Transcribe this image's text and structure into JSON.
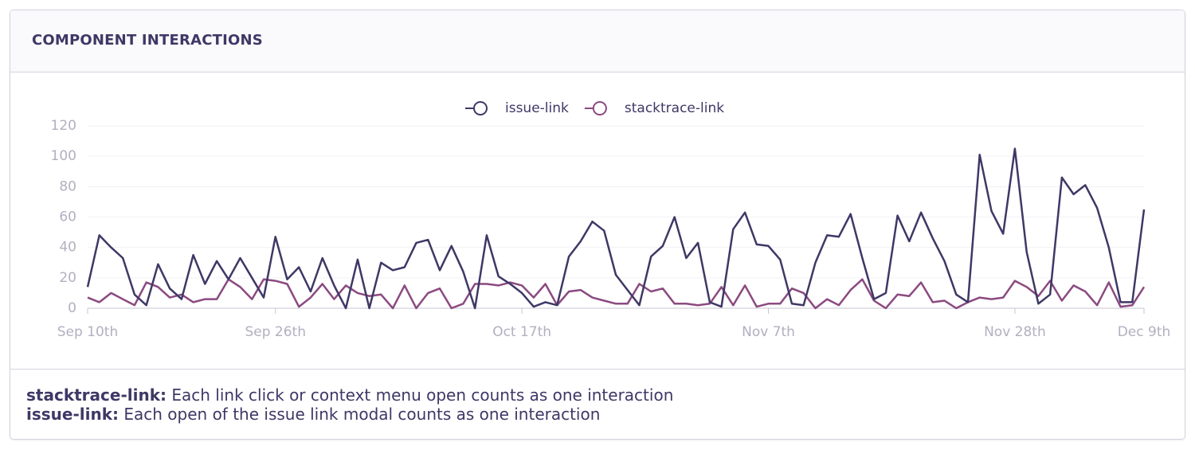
{
  "panel": {
    "title": "COMPONENT INTERACTIONS"
  },
  "chart_data": {
    "type": "line",
    "categories": [
      "Sep 10th",
      null,
      null,
      null,
      null,
      null,
      null,
      null,
      null,
      null,
      null,
      null,
      null,
      null,
      null,
      null,
      "Sep 26th",
      null,
      null,
      null,
      null,
      null,
      null,
      null,
      null,
      null,
      null,
      null,
      null,
      null,
      null,
      null,
      null,
      null,
      null,
      null,
      null,
      "Oct 17th",
      null,
      null,
      null,
      null,
      null,
      null,
      null,
      null,
      null,
      null,
      null,
      null,
      null,
      null,
      null,
      null,
      null,
      null,
      null,
      null,
      "Nov 7th",
      null,
      null,
      null,
      null,
      null,
      null,
      null,
      null,
      null,
      null,
      null,
      null,
      null,
      null,
      null,
      null,
      null,
      null,
      null,
      null,
      "Nov 28th",
      null,
      null,
      null,
      null,
      null,
      null,
      null,
      null,
      null,
      null,
      "Dec 9th"
    ],
    "series": [
      {
        "name": "issue-link",
        "color": "#3e3866",
        "values": [
          14,
          48,
          40,
          33,
          9,
          2,
          29,
          13,
          6,
          35,
          16,
          31,
          19,
          33,
          20,
          7,
          47,
          19,
          27,
          11,
          33,
          15,
          0,
          32,
          0,
          30,
          25,
          27,
          43,
          45,
          25,
          41,
          24,
          0,
          48,
          21,
          16,
          10,
          1,
          4,
          2,
          34,
          44,
          57,
          51,
          22,
          12,
          2,
          34,
          41,
          60,
          33,
          43,
          4,
          1,
          52,
          63,
          42,
          41,
          32,
          3,
          2,
          30,
          48,
          47,
          62,
          33,
          6,
          10,
          61,
          44,
          63,
          46,
          31,
          9,
          4,
          101,
          64,
          49,
          105,
          37,
          3,
          9,
          86,
          75,
          81,
          66,
          40,
          4,
          4,
          65
        ]
      },
      {
        "name": "stacktrace-link",
        "color": "#8b4a80",
        "values": [
          7,
          4,
          10,
          6,
          2,
          17,
          14,
          7,
          9,
          4,
          6,
          6,
          19,
          14,
          6,
          19,
          18,
          16,
          1,
          7,
          16,
          6,
          15,
          10,
          8,
          9,
          0,
          15,
          0,
          10,
          13,
          0,
          3,
          16,
          16,
          15,
          17,
          15,
          7,
          16,
          2,
          11,
          12,
          7,
          5,
          3,
          3,
          16,
          11,
          13,
          3,
          3,
          2,
          3,
          14,
          2,
          15,
          1,
          3,
          3,
          13,
          10,
          0,
          6,
          2,
          12,
          19,
          5,
          0,
          9,
          8,
          17,
          4,
          5,
          0,
          4,
          7,
          6,
          7,
          18,
          14,
          8,
          18,
          5,
          15,
          11,
          2,
          17,
          1,
          2,
          14
        ]
      }
    ],
    "ylim": [
      0,
      120
    ],
    "yticks": [
      0,
      20,
      40,
      60,
      80,
      100,
      120
    ],
    "grid": true,
    "legend": "top"
  },
  "notes": [
    {
      "term": "stacktrace-link:",
      "text": "Each link click or context menu open counts as one interaction"
    },
    {
      "term": "issue-link:",
      "text": "Each open of the issue link modal counts as one interaction"
    }
  ]
}
